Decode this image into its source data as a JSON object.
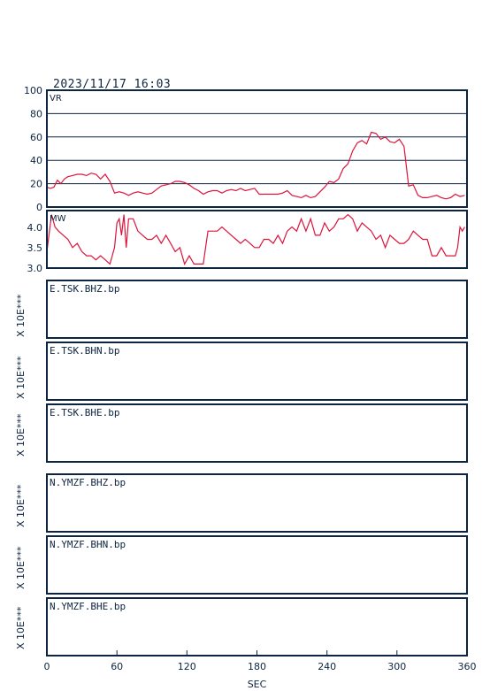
{
  "header": {
    "timestamp": "2023/11/17 16:03"
  },
  "colors": {
    "trace": "#dc143c",
    "frame": "#0d2440",
    "text": "#0d2440"
  },
  "chart_data": [
    {
      "type": "line",
      "label": "VR",
      "ylim": [
        0,
        100
      ],
      "yticks": [
        "100",
        "80",
        "60",
        "40",
        "20",
        "0"
      ],
      "grid": true,
      "series": [
        {
          "x": [
            0,
            3,
            6,
            9,
            12,
            15,
            18,
            22,
            26,
            30,
            34,
            38,
            42,
            46,
            50,
            54,
            58,
            62,
            66,
            70,
            74,
            78,
            82,
            86,
            90,
            94,
            98,
            102,
            106,
            110,
            114,
            118,
            122,
            126,
            130,
            134,
            138,
            142,
            146,
            150,
            154,
            158,
            162,
            166,
            170,
            174,
            178,
            182,
            186,
            190,
            194,
            198,
            202,
            206,
            210,
            214,
            218,
            222,
            226,
            230,
            234,
            238,
            242,
            246,
            250,
            254,
            258,
            262,
            266,
            270,
            274,
            278,
            282,
            286,
            290,
            294,
            298,
            302,
            306,
            310,
            314,
            318,
            322,
            326,
            330,
            334,
            338,
            342,
            346,
            350,
            354,
            358
          ],
          "y": [
            17,
            16,
            17,
            23,
            20,
            24,
            26,
            27,
            28,
            28,
            27,
            29,
            28,
            24,
            28,
            22,
            12,
            13,
            12,
            10,
            12,
            13,
            12,
            11,
            12,
            15,
            18,
            19,
            20,
            22,
            22,
            21,
            19,
            16,
            14,
            11,
            13,
            14,
            14,
            12,
            14,
            15,
            14,
            16,
            14,
            15,
            16,
            11,
            11,
            11,
            11,
            11,
            12,
            14,
            10,
            9,
            8,
            10,
            8,
            9,
            13,
            17,
            22,
            21,
            24,
            33,
            37,
            48,
            55,
            57,
            54,
            64,
            63,
            58,
            60,
            56,
            55,
            58,
            52,
            18,
            19,
            10,
            8,
            8,
            9,
            10,
            8,
            7,
            8,
            11,
            9,
            10
          ]
        }
      ]
    },
    {
      "type": "line",
      "label": "MW",
      "ylim": [
        3.0,
        4.4
      ],
      "yticks": [
        "4.0",
        "3.5",
        "3.0"
      ],
      "series": [
        {
          "x": [
            0,
            4,
            7,
            10,
            14,
            18,
            22,
            26,
            30,
            34,
            38,
            42,
            46,
            50,
            54,
            58,
            60,
            62,
            64,
            66,
            68,
            70,
            74,
            78,
            82,
            86,
            90,
            94,
            98,
            102,
            106,
            110,
            114,
            118,
            122,
            126,
            130,
            134,
            138,
            142,
            146,
            150,
            154,
            158,
            162,
            166,
            170,
            174,
            178,
            182,
            186,
            190,
            194,
            198,
            202,
            206,
            210,
            214,
            218,
            222,
            226,
            230,
            234,
            238,
            242,
            246,
            250,
            254,
            258,
            262,
            266,
            270,
            274,
            278,
            282,
            286,
            290,
            294,
            298,
            302,
            306,
            310,
            314,
            318,
            322,
            326,
            330,
            334,
            338,
            342,
            346,
            350,
            352,
            354,
            356,
            358
          ],
          "y": [
            3.4,
            4.3,
            4.0,
            3.9,
            3.8,
            3.7,
            3.5,
            3.6,
            3.4,
            3.3,
            3.3,
            3.2,
            3.3,
            3.2,
            3.1,
            3.5,
            4.1,
            4.2,
            3.8,
            4.3,
            3.5,
            4.2,
            4.2,
            3.9,
            3.8,
            3.7,
            3.7,
            3.8,
            3.6,
            3.8,
            3.6,
            3.4,
            3.5,
            3.1,
            3.3,
            3.1,
            3.1,
            3.1,
            3.9,
            3.9,
            3.9,
            4.0,
            3.9,
            3.8,
            3.7,
            3.6,
            3.7,
            3.6,
            3.5,
            3.5,
            3.7,
            3.7,
            3.6,
            3.8,
            3.6,
            3.9,
            4.0,
            3.9,
            4.2,
            3.9,
            4.2,
            3.8,
            3.8,
            4.1,
            3.9,
            4.0,
            4.2,
            4.2,
            4.3,
            4.2,
            3.9,
            4.1,
            4.0,
            3.9,
            3.7,
            3.8,
            3.5,
            3.8,
            3.7,
            3.6,
            3.6,
            3.7,
            3.9,
            3.8,
            3.7,
            3.7,
            3.3,
            3.3,
            3.5,
            3.3,
            3.3,
            3.3,
            3.5,
            4.0,
            3.9,
            4.0
          ]
        }
      ]
    },
    {
      "type": "line",
      "label": "E.TSK.BHZ.bp",
      "unit": "X 10E***",
      "series": []
    },
    {
      "type": "line",
      "label": "E.TSK.BHN.bp",
      "unit": "X 10E***",
      "series": []
    },
    {
      "type": "line",
      "label": "E.TSK.BHE.bp",
      "unit": "X 10E***",
      "series": []
    },
    {
      "type": "line",
      "label": "N.YMZF.BHZ.bp",
      "unit": "X 10E***",
      "series": []
    },
    {
      "type": "line",
      "label": "N.YMZF.BHN.bp",
      "unit": "X 10E***",
      "series": []
    },
    {
      "type": "line",
      "label": "N.YMZF.BHE.bp",
      "unit": "X 10E***",
      "series": []
    }
  ],
  "x_axis": {
    "label": "SEC",
    "xlim": [
      0,
      360
    ],
    "ticks": [
      "0",
      "60",
      "120",
      "180",
      "240",
      "300",
      "360"
    ]
  }
}
